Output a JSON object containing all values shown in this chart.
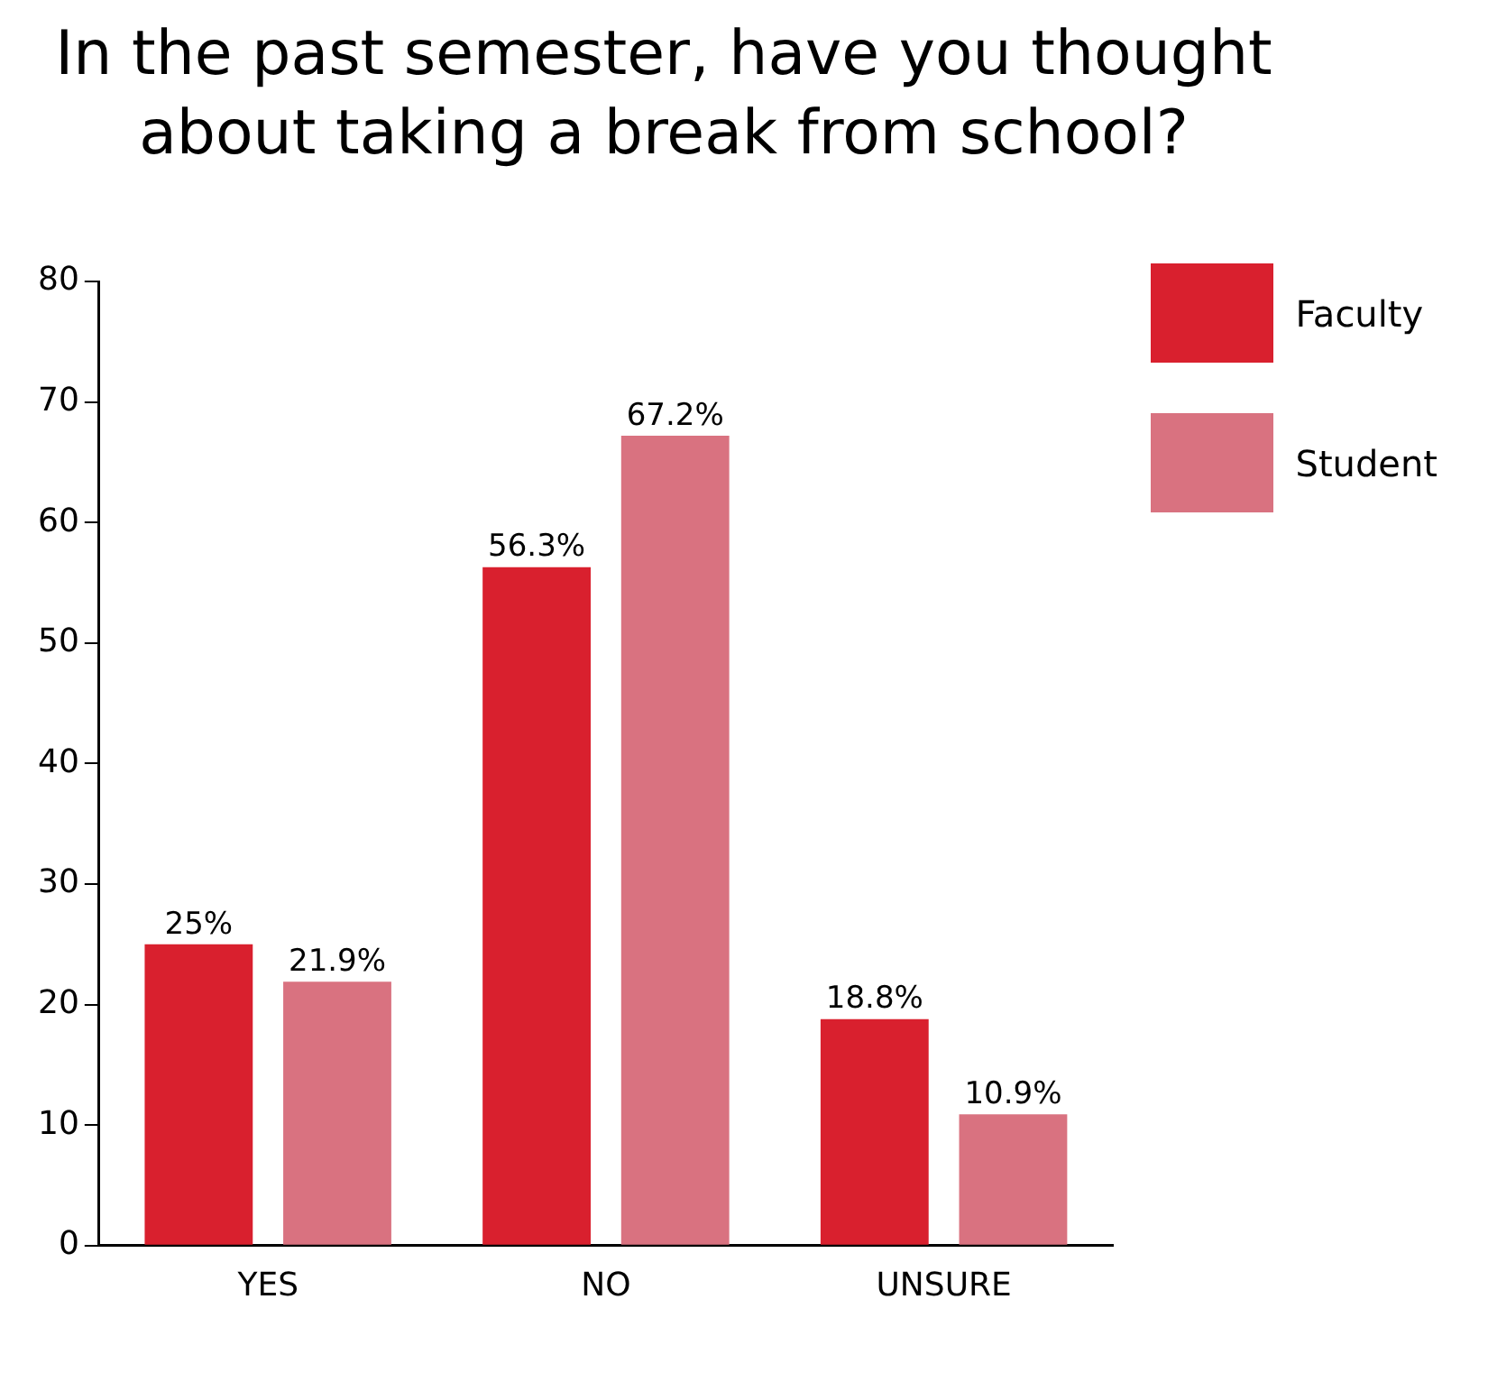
{
  "chart_data": {
    "type": "bar",
    "title": "In the past semester, have you thought about taking a break from school?",
    "categories": [
      "YES",
      "NO",
      "UNSURE"
    ],
    "series": [
      {
        "name": "Faculty",
        "color": "#d9202e",
        "values": [
          25,
          56.3,
          18.8
        ],
        "value_labels": [
          "25%",
          "56.3%",
          "18.8%"
        ]
      },
      {
        "name": "Student",
        "color": "#d97280",
        "values": [
          21.9,
          67.2,
          10.9
        ],
        "value_labels": [
          "21.9%",
          "67.2%",
          "10.9%"
        ]
      }
    ],
    "ylim": [
      0,
      80
    ],
    "yticks": [
      0,
      10,
      20,
      30,
      40,
      50,
      60,
      70,
      80
    ],
    "grid": false,
    "legend": "top right"
  }
}
